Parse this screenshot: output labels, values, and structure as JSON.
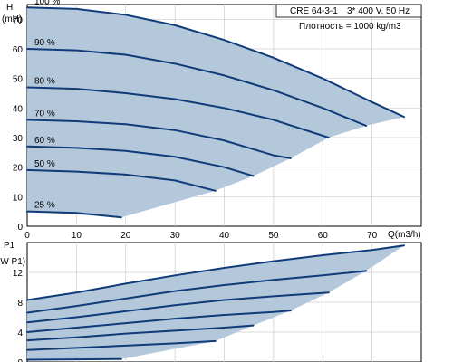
{
  "info_box": {
    "model": "CRE 64-3-1",
    "supply": "3* 400 V, 50 Hz",
    "density": "Плотность = 1000 kg/m3"
  },
  "chart_data": [
    {
      "type": "line",
      "ylabel_top": "H",
      "yunit": "(mH)",
      "xlabel": "Q(m3/h)",
      "xlim": [
        0,
        80
      ],
      "ylim": [
        0,
        75
      ],
      "x_ticks": [
        "0",
        "10",
        "20",
        "30",
        "40",
        "50",
        "60",
        "70"
      ],
      "y_ticks": [
        "0",
        "10",
        "20",
        "30",
        "40",
        "50",
        "60",
        "70"
      ],
      "grid": true,
      "operating_area_color": "#b4c8dc",
      "line_color": "#0f3c78",
      "series": [
        {
          "name": "100 %",
          "x": [
            0,
            10,
            20,
            30,
            40,
            50,
            60,
            70,
            76.5
          ],
          "y": [
            74,
            73.5,
            71.5,
            68,
            63,
            57,
            50,
            42,
            37
          ]
        },
        {
          "name": "90 %",
          "x": [
            0,
            10,
            20,
            30,
            40,
            50,
            60,
            68.8
          ],
          "y": [
            60,
            59.5,
            58,
            55,
            51,
            46,
            40,
            34
          ]
        },
        {
          "name": "80 %",
          "x": [
            0,
            10,
            20,
            30,
            40,
            50,
            61.2
          ],
          "y": [
            47,
            46.5,
            45,
            43,
            40,
            36,
            30
          ]
        },
        {
          "name": "70 %",
          "x": [
            0,
            10,
            20,
            30,
            40,
            50,
            53.5
          ],
          "y": [
            36,
            35.5,
            34.5,
            32.5,
            29,
            24,
            23
          ]
        },
        {
          "name": "60 %",
          "x": [
            0,
            10,
            20,
            30,
            40,
            45.9
          ],
          "y": [
            27,
            26.5,
            25.5,
            23.5,
            20,
            17
          ]
        },
        {
          "name": "50 %",
          "x": [
            0,
            10,
            20,
            30,
            38.2
          ],
          "y": [
            19,
            18.5,
            17.5,
            15.5,
            12
          ]
        },
        {
          "name": "25 %",
          "x": [
            0,
            10,
            19.1
          ],
          "y": [
            5,
            4.5,
            3
          ]
        }
      ]
    },
    {
      "type": "line",
      "ylabel_top": "P1",
      "yunit": "(kW P1)",
      "xlim": [
        0,
        80
      ],
      "ylim": [
        0,
        16
      ],
      "y_ticks": [
        "0",
        "4",
        "8",
        "12"
      ],
      "grid": true,
      "operating_area_color": "#b4c8dc",
      "line_color": "#0f3c78",
      "series": [
        {
          "name": "100 %",
          "x": [
            0,
            10,
            20,
            30,
            40,
            50,
            60,
            70,
            76.5
          ],
          "y": [
            8.3,
            9.3,
            10.5,
            11.6,
            12.6,
            13.5,
            14.3,
            15.0,
            15.6
          ]
        },
        {
          "name": "90 %",
          "x": [
            0,
            10,
            20,
            30,
            40,
            50,
            60,
            68.8
          ],
          "y": [
            6.6,
            7.5,
            8.5,
            9.5,
            10.3,
            11.0,
            11.6,
            12.2
          ]
        },
        {
          "name": "80 %",
          "x": [
            0,
            10,
            20,
            30,
            40,
            50,
            61.2
          ],
          "y": [
            5.3,
            6.0,
            6.8,
            7.6,
            8.3,
            8.8,
            9.3
          ]
        },
        {
          "name": "70 %",
          "x": [
            0,
            10,
            20,
            30,
            40,
            50,
            53.5
          ],
          "y": [
            4.0,
            4.6,
            5.2,
            5.8,
            6.3,
            6.7,
            6.9
          ]
        },
        {
          "name": "60 %",
          "x": [
            0,
            10,
            20,
            30,
            40,
            45.9
          ],
          "y": [
            2.9,
            3.3,
            3.8,
            4.2,
            4.6,
            4.9
          ]
        },
        {
          "name": "50 %",
          "x": [
            0,
            10,
            20,
            30,
            38.2
          ],
          "y": [
            1.6,
            1.9,
            2.2,
            2.5,
            2.8
          ]
        },
        {
          "name": "25 %",
          "x": [
            0,
            10,
            19.1
          ],
          "y": [
            0.3,
            0.35,
            0.4
          ]
        }
      ]
    }
  ]
}
